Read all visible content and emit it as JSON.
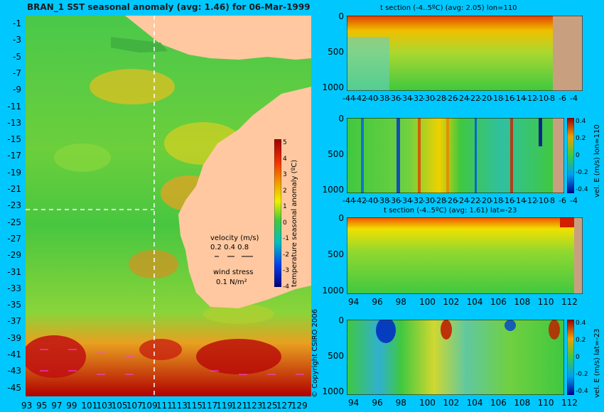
{
  "map": {
    "title": "BRAN_1  SST seasonal anomaly (avg: 1.46) for 06-Mar-1999",
    "lat_ticks": [
      "-1",
      "-3",
      "-5",
      "-7",
      "-9",
      "-11",
      "-13",
      "-15",
      "-17",
      "-19",
      "-21",
      "-23",
      "-25",
      "-27",
      "-29",
      "-31",
      "-33",
      "-35",
      "-37",
      "-39",
      "-41",
      "-43",
      "-45"
    ],
    "lon_ticks": [
      "93",
      "95",
      "97",
      "99",
      "101",
      "103",
      "105",
      "107",
      "109",
      "111",
      "113",
      "115",
      "117",
      "119",
      "121",
      "123",
      "125",
      "127",
      "129"
    ],
    "colorbar": {
      "label": "temperature seasonal anomaly (ºC)",
      "ticks": [
        "5",
        "4",
        "3",
        "2",
        "1",
        "0",
        "-1",
        "-2",
        "-3",
        "-4"
      ]
    },
    "velocity_legend": {
      "title": "velocity (m/s)",
      "scale": "0.2 0.4 0.8"
    },
    "wind_legend": {
      "title": "wind stress",
      "value": "0.1 N/m²"
    },
    "copyright": "© Copyright CSIRO 2006",
    "section_lines": {
      "lon": 110,
      "lat": -23
    }
  },
  "panels": [
    {
      "title": "t section (-4..5ºC) (avg: 2.05) lon=110",
      "y_ticks": [
        "0",
        "500",
        "1000"
      ],
      "x_ticks": [
        "-44",
        "-42",
        "-40",
        "-38",
        "-36",
        "-34",
        "-32",
        "-30",
        "-28",
        "-26",
        "-24",
        "-22",
        "-20",
        "-18",
        "-16",
        "-14",
        "-12",
        "-10",
        "-8",
        "-6",
        "-4"
      ]
    },
    {
      "title": "",
      "y_ticks": [
        "0",
        "500",
        "1000"
      ],
      "x_ticks": [
        "-44",
        "-42",
        "-40",
        "-38",
        "-36",
        "-34",
        "-32",
        "-30",
        "-28",
        "-26",
        "-24",
        "-22",
        "-20",
        "-18",
        "-16",
        "-14",
        "-12",
        "-10",
        "-8",
        "-6",
        "-4"
      ],
      "colorbar_label": "vel. E (m/s) lon=110",
      "colorbar_ticks": [
        "0.4",
        "0.2",
        "0",
        "-0.2",
        "-0.4"
      ]
    },
    {
      "title": "t section (-4..5ºC) (avg: 1.61) lat=-23",
      "y_ticks": [
        "0",
        "500",
        "1000"
      ],
      "x_ticks": [
        "94",
        "96",
        "98",
        "100",
        "102",
        "104",
        "106",
        "108",
        "110",
        "112"
      ]
    },
    {
      "title": "",
      "y_ticks": [
        "0",
        "500",
        "1000"
      ],
      "x_ticks": [
        "94",
        "96",
        "98",
        "100",
        "102",
        "104",
        "106",
        "108",
        "110",
        "112"
      ],
      "colorbar_label": "vel. E (m/s) lat=-23",
      "colorbar_ticks": [
        "0.4",
        "0.2",
        "0",
        "-0.2",
        "-0.4"
      ]
    }
  ],
  "colors": {
    "background": "#00c8ff",
    "land": "#ffc8a0",
    "section_land": "#c8a080",
    "ocean_green": "#3cc83c",
    "warm_yellow": "#f0e000",
    "hot_red": "#c80000"
  }
}
